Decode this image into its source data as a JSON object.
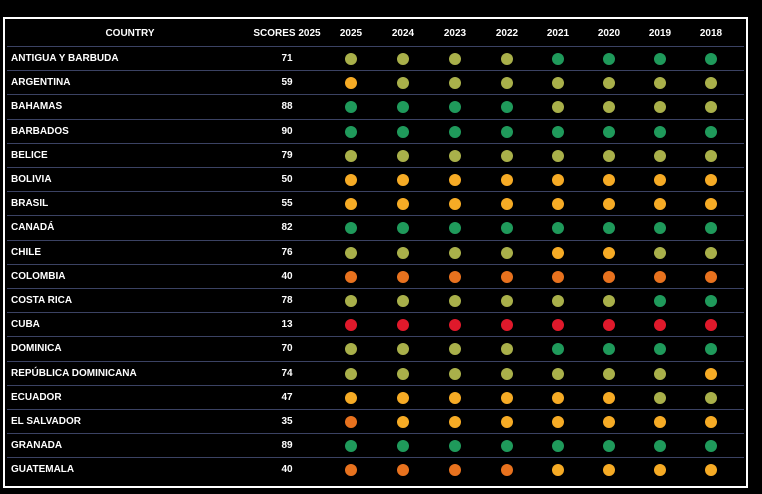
{
  "table": {
    "header": [
      "COUNTRY",
      "SCORES 2025",
      "2025",
      "2024",
      "2023",
      "2022",
      "2021",
      "2020",
      "2019",
      "2018"
    ],
    "rows": [
      [
        "ANTIGUA Y BARBUDA",
        71,
        [
          "#a9b04a",
          "#a9b04a",
          "#a9b04a",
          "#a9b04a",
          "#1f9a5b",
          "#1f9a5b",
          "#1f9a5b",
          "#1f9a5b"
        ]
      ],
      [
        "ARGENTINA",
        59,
        [
          "#f6ab25",
          "#a9b04a",
          "#a9b04a",
          "#a9b04a",
          "#a9b04a",
          "#a9b04a",
          "#a9b04a",
          "#a9b04a"
        ]
      ],
      [
        "BAHAMAS",
        88,
        [
          "#1f9a5b",
          "#1f9a5b",
          "#1f9a5b",
          "#1f9a5b",
          "#a9b04a",
          "#a9b04a",
          "#a9b04a",
          "#a9b04a"
        ]
      ],
      [
        "BARBADOS",
        90,
        [
          "#1f9a5b",
          "#1f9a5b",
          "#1f9a5b",
          "#1f9a5b",
          "#1f9a5b",
          "#1f9a5b",
          "#1f9a5b",
          "#1f9a5b"
        ]
      ],
      [
        "BELICE",
        79,
        [
          "#a9b04a",
          "#a9b04a",
          "#a9b04a",
          "#a9b04a",
          "#a9b04a",
          "#a9b04a",
          "#a9b04a",
          "#a9b04a"
        ]
      ],
      [
        "BOLIVIA",
        50,
        [
          "#f6ab25",
          "#f6ab25",
          "#f6ab25",
          "#f6ab25",
          "#f6ab25",
          "#f6ab25",
          "#f6ab25",
          "#f6ab25"
        ]
      ],
      [
        "BRASIL",
        55,
        [
          "#f6ab25",
          "#f6ab25",
          "#f6ab25",
          "#f6ab25",
          "#f6ab25",
          "#f6ab25",
          "#f6ab25",
          "#f6ab25"
        ]
      ],
      [
        "CANADÁ",
        82,
        [
          "#1f9a5b",
          "#1f9a5b",
          "#1f9a5b",
          "#1f9a5b",
          "#1f9a5b",
          "#1f9a5b",
          "#1f9a5b",
          "#1f9a5b"
        ]
      ],
      [
        "CHILE",
        76,
        [
          "#a9b04a",
          "#a9b04a",
          "#a9b04a",
          "#a9b04a",
          "#f6ab25",
          "#f6ab25",
          "#a9b04a",
          "#a9b04a"
        ]
      ],
      [
        "COLOMBIA",
        40,
        [
          "#e8721e",
          "#e8721e",
          "#e8721e",
          "#e8721e",
          "#e8721e",
          "#e8721e",
          "#e8721e",
          "#e8721e"
        ]
      ],
      [
        "COSTA RICA",
        78,
        [
          "#a9b04a",
          "#a9b04a",
          "#a9b04a",
          "#a9b04a",
          "#a9b04a",
          "#a9b04a",
          "#1f9a5b",
          "#1f9a5b"
        ]
      ],
      [
        "CUBA",
        13,
        [
          "#e0192b",
          "#e0192b",
          "#e0192b",
          "#e0192b",
          "#e0192b",
          "#e0192b",
          "#e0192b",
          "#e0192b"
        ]
      ],
      [
        "DOMINICA",
        70,
        [
          "#a9b04a",
          "#a9b04a",
          "#a9b04a",
          "#a9b04a",
          "#1f9a5b",
          "#1f9a5b",
          "#1f9a5b",
          "#1f9a5b"
        ]
      ],
      [
        "REPÚBLICA DOMINICANA",
        74,
        [
          "#a9b04a",
          "#a9b04a",
          "#a9b04a",
          "#a9b04a",
          "#a9b04a",
          "#a9b04a",
          "#a9b04a",
          "#f6ab25"
        ]
      ],
      [
        "ECUADOR",
        47,
        [
          "#f6ab25",
          "#f6ab25",
          "#f6ab25",
          "#f6ab25",
          "#f6ab25",
          "#f6ab25",
          "#a9b04a",
          "#a9b04a"
        ]
      ],
      [
        "EL SALVADOR",
        35,
        [
          "#e8721e",
          "#f6ab25",
          "#f6ab25",
          "#f6ab25",
          "#f6ab25",
          "#f6ab25",
          "#f6ab25",
          "#f6ab25"
        ]
      ],
      [
        "GRANADA",
        89,
        [
          "#1f9a5b",
          "#1f9a5b",
          "#1f9a5b",
          "#1f9a5b",
          "#1f9a5b",
          "#1f9a5b",
          "#1f9a5b",
          "#1f9a5b"
        ]
      ],
      [
        "GUATEMALA",
        40,
        [
          "#e8721e",
          "#e8721e",
          "#e8721e",
          "#e8721e",
          "#f6ab25",
          "#f6ab25",
          "#f6ab25",
          "#f6ab25"
        ]
      ]
    ]
  }
}
